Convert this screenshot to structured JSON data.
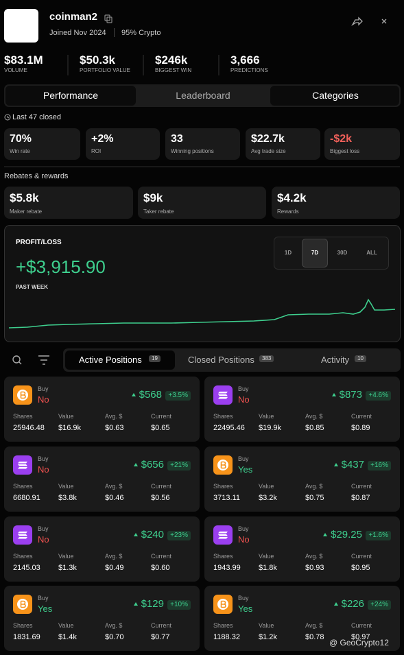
{
  "profile": {
    "name": "coinman2",
    "joined": "Joined Nov 2024",
    "tag": "95% Crypto"
  },
  "stats": [
    {
      "value": "$83.1M",
      "label": "VOLUME"
    },
    {
      "value": "$50.3k",
      "label": "PORTFOLIO VALUE"
    },
    {
      "value": "$246k",
      "label": "BIGGEST WIN"
    },
    {
      "value": "3,666",
      "label": "PREDICTIONS"
    }
  ],
  "tabs": [
    "Performance",
    "Leaderboard",
    "Categories"
  ],
  "closed_note": "Last 47 closed",
  "performance": [
    {
      "value": "70%",
      "label": "Win rate"
    },
    {
      "value": "+2%",
      "label": "ROI"
    },
    {
      "value": "33",
      "label": "Winning positions"
    },
    {
      "value": "$22.7k",
      "label": "Avg trade size"
    },
    {
      "value": "-$2k",
      "label": "Biggest loss",
      "color": "#f0605a"
    }
  ],
  "rebates_title": "Rebates & rewards",
  "rebates": [
    {
      "value": "$5.8k",
      "label": "Maker rebate"
    },
    {
      "value": "$9k",
      "label": "Taker rebate"
    },
    {
      "value": "$4.2k",
      "label": "Rewards"
    }
  ],
  "pnl": {
    "title": "PROFIT/LOSS",
    "value": "+$3,915.90",
    "period": "PAST WEEK",
    "ranges": [
      "1D",
      "7D",
      "30D",
      "ALL"
    ]
  },
  "position_tabs": [
    {
      "label": "Active Positions",
      "count": "19"
    },
    {
      "label": "Closed Positions",
      "count": "383"
    },
    {
      "label": "Activity",
      "count": "10"
    }
  ],
  "columns": [
    "Shares",
    "Value",
    "Avg. $",
    "Current"
  ],
  "positions": [
    {
      "icon": "bitcoin",
      "action": "Buy",
      "side": "No",
      "pnl": "$568",
      "change": "+3.5%",
      "shares": "25946.48",
      "value": "$16.9k",
      "avg": "$0.63",
      "current": "$0.65"
    },
    {
      "icon": "solana",
      "action": "Buy",
      "side": "No",
      "pnl": "$873",
      "change": "+4.6%",
      "shares": "22495.46",
      "value": "$19.9k",
      "avg": "$0.85",
      "current": "$0.89"
    },
    {
      "icon": "solana",
      "action": "Buy",
      "side": "No",
      "pnl": "$656",
      "change": "+21%",
      "shares": "6680.91",
      "value": "$3.8k",
      "avg": "$0.46",
      "current": "$0.56"
    },
    {
      "icon": "bitcoin",
      "action": "Buy",
      "side": "Yes",
      "pnl": "$437",
      "change": "+16%",
      "shares": "3713.11",
      "value": "$3.2k",
      "avg": "$0.75",
      "current": "$0.87"
    },
    {
      "icon": "solana",
      "action": "Buy",
      "side": "No",
      "pnl": "$240",
      "change": "+23%",
      "shares": "2145.03",
      "value": "$1.3k",
      "avg": "$0.49",
      "current": "$0.60"
    },
    {
      "icon": "solana",
      "action": "Buy",
      "side": "No",
      "pnl": "$29.25",
      "change": "+1.6%",
      "shares": "1943.99",
      "value": "$1.8k",
      "avg": "$0.93",
      "current": "$0.95"
    },
    {
      "icon": "bitcoin",
      "action": "Buy",
      "side": "Yes",
      "pnl": "$129",
      "change": "+10%",
      "shares": "1831.69",
      "value": "$1.4k",
      "avg": "$0.70",
      "current": "$0.77"
    },
    {
      "icon": "bitcoin",
      "action": "Buy",
      "side": "Yes",
      "pnl": "$226",
      "change": "+24%",
      "shares": "1188.32",
      "value": "$1.2k",
      "avg": "$0.78",
      "current": "$0.97"
    }
  ],
  "watermark": "@ GeoCrypto12"
}
